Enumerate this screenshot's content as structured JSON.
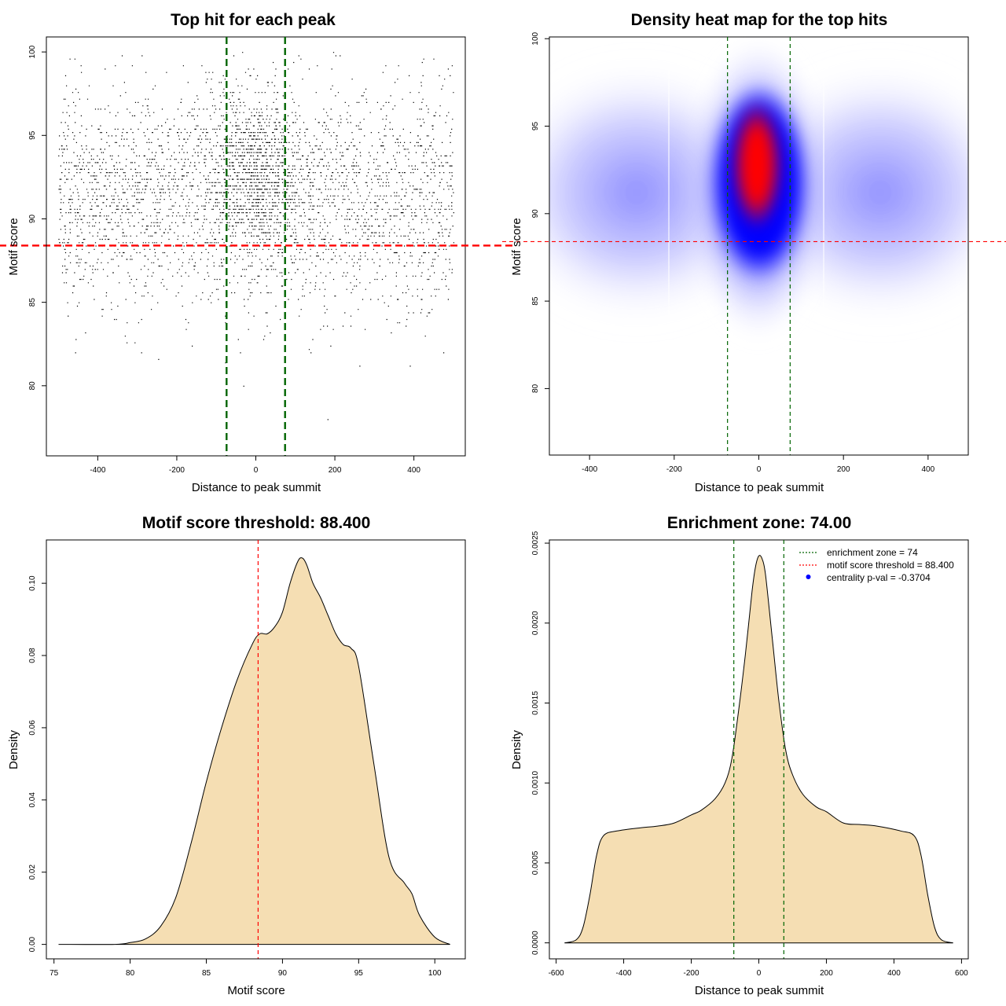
{
  "chart_data": [
    {
      "type": "scatter",
      "title": "Top hit for each peak",
      "xlabel": "Distance to peak summit",
      "ylabel": "Motif score",
      "xlim": [
        -530,
        530
      ],
      "ylim": [
        75.8,
        100.9
      ],
      "xticks": [
        -400,
        -200,
        0,
        200,
        400
      ],
      "yticks": [
        80,
        85,
        90,
        95,
        100
      ],
      "points_shown": "approx. 25000 top-hit positions spanning x -500 to 500 and y ~76 to 100, densest near x = 0 and y 90-95",
      "x_range": [
        -500,
        500
      ],
      "y_range": [
        76.5,
        100
      ],
      "reference_lines": [
        {
          "axis": "x",
          "value": -74,
          "color": "#006400",
          "style": "dashed"
        },
        {
          "axis": "x",
          "value": 74,
          "color": "#006400",
          "style": "dashed"
        },
        {
          "axis": "y",
          "value": 88.4,
          "color": "#ff0000",
          "style": "dashed"
        }
      ]
    },
    {
      "type": "heatmap",
      "title": "Density heat map for the top hits",
      "xlabel": "Distance to peak summit",
      "ylabel": "Motif score",
      "xlim": [
        -495,
        495
      ],
      "ylim": [
        76.2,
        100.1
      ],
      "xticks": [
        -400,
        -200,
        0,
        200,
        400
      ],
      "yticks": [
        80,
        85,
        90,
        95,
        100
      ],
      "colormap": [
        "#ffffff",
        "#0000ff",
        "#ff0000"
      ],
      "density_peak": {
        "x": 0,
        "y": 92.5
      },
      "reference_lines": [
        {
          "axis": "x",
          "value": -74,
          "color": "#006400",
          "style": "dashed"
        },
        {
          "axis": "x",
          "value": 74,
          "color": "#006400",
          "style": "dashed"
        },
        {
          "axis": "y",
          "value": 88.4,
          "color": "#ff0000",
          "style": "dashed"
        }
      ]
    },
    {
      "type": "area",
      "title": "Motif score threshold: 88.400",
      "xlabel": "Motif score",
      "ylabel": "Density",
      "xlim": [
        74.5,
        102
      ],
      "ylim": [
        -0.004,
        0.112
      ],
      "xticks": [
        75,
        80,
        85,
        90,
        95,
        100
      ],
      "yticks": [
        0.0,
        0.02,
        0.04,
        0.06,
        0.08,
        0.1
      ],
      "ytick_labels": [
        "0.00",
        "0.02",
        "0.04",
        "0.06",
        "0.08",
        "0.10"
      ],
      "fill_color": "#f5deb3",
      "x": [
        75.3,
        79.0,
        80.0,
        81.0,
        82.0,
        83.0,
        84.0,
        85.0,
        86.0,
        87.0,
        88.0,
        88.5,
        89.0,
        89.5,
        90.0,
        90.5,
        91.0,
        91.3,
        91.6,
        92.0,
        92.5,
        93.0,
        93.5,
        94.0,
        94.5,
        95.0,
        96.0,
        97.0,
        98.0,
        98.5,
        99.0,
        100.0,
        101.0
      ],
      "y": [
        0.0,
        0.0,
        0.0005,
        0.0015,
        0.005,
        0.013,
        0.028,
        0.045,
        0.06,
        0.073,
        0.083,
        0.086,
        0.086,
        0.088,
        0.092,
        0.1,
        0.106,
        0.107,
        0.105,
        0.1,
        0.096,
        0.091,
        0.086,
        0.083,
        0.082,
        0.077,
        0.05,
        0.024,
        0.017,
        0.014,
        0.008,
        0.002,
        0.0
      ],
      "reference_lines": [
        {
          "axis": "x",
          "value": 88.4,
          "color": "#ff0000",
          "style": "dashed"
        }
      ]
    },
    {
      "type": "area",
      "title": "Enrichment zone: 74.00",
      "xlabel": "Distance to peak summit",
      "ylabel": "Density",
      "xlim": [
        -620,
        620
      ],
      "ylim": [
        -0.0001,
        0.00252
      ],
      "xticks": [
        -600,
        -400,
        -200,
        0,
        200,
        400,
        600
      ],
      "yticks": [
        0.0,
        0.0005,
        0.001,
        0.0015,
        0.002,
        0.0025
      ],
      "ytick_labels": [
        "0.0000",
        "0.0005",
        "0.0010",
        "0.0015",
        "0.0020",
        "0.0025"
      ],
      "fill_color": "#f5deb3",
      "x": [
        -575,
        -540,
        -520,
        -500,
        -480,
        -460,
        -420,
        -350,
        -300,
        -250,
        -200,
        -170,
        -130,
        -100,
        -80,
        -60,
        -40,
        -20,
        -10,
        0,
        10,
        20,
        40,
        60,
        80,
        100,
        130,
        170,
        200,
        250,
        300,
        350,
        420,
        460,
        480,
        500,
        520,
        540,
        575
      ],
      "y": [
        0.0,
        2e-05,
        0.0001,
        0.0003,
        0.00055,
        0.00067,
        0.0007,
        0.00072,
        0.00073,
        0.00075,
        0.0008,
        0.00083,
        0.0009,
        0.001,
        0.00115,
        0.00145,
        0.0018,
        0.0022,
        0.00235,
        0.00242,
        0.0024,
        0.0023,
        0.0019,
        0.0015,
        0.0012,
        0.00105,
        0.00093,
        0.00085,
        0.00082,
        0.00075,
        0.00074,
        0.00073,
        0.0007,
        0.00067,
        0.00055,
        0.0003,
        0.0001,
        2e-05,
        0.0
      ],
      "reference_lines": [
        {
          "axis": "x",
          "value": -74,
          "color": "#006400",
          "style": "dashed"
        },
        {
          "axis": "x",
          "value": 74,
          "color": "#006400",
          "style": "dashed"
        }
      ],
      "legend": {
        "position": "top-right",
        "entries": [
          {
            "label": "enrichment zone = 74",
            "color": "#006400",
            "marker": "dotted-line"
          },
          {
            "label": "motif score threshold = 88.400",
            "color": "#ff0000",
            "marker": "dotted-line"
          },
          {
            "label": "centrality p-val = -0.3704",
            "color": "#0000ff",
            "marker": "dot"
          }
        ]
      }
    }
  ]
}
